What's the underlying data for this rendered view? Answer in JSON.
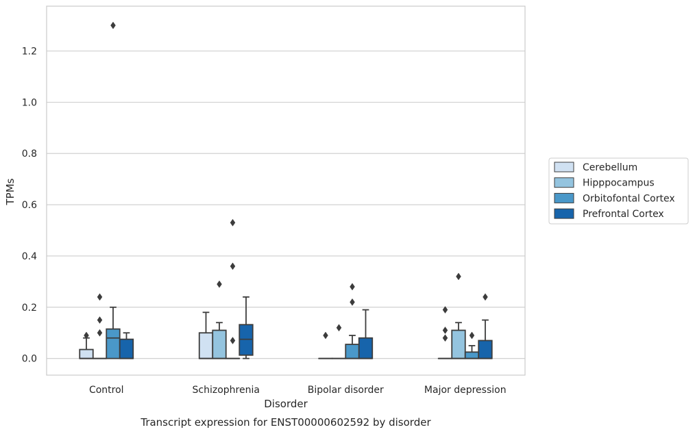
{
  "chart_data": {
    "type": "box",
    "caption": "Transcript expression for ENST00000602592 by disorder",
    "xlabel": "Disorder",
    "ylabel": "TPMs",
    "ylim": [
      -0.065,
      1.375
    ],
    "yticks": [
      0.0,
      0.2,
      0.4,
      0.6,
      0.8,
      1.0,
      1.2
    ],
    "ytick_labels": [
      "0.0",
      "0.2",
      "0.4",
      "0.6",
      "0.8",
      "1.0",
      "1.2"
    ],
    "grid": true,
    "legend_position": "right",
    "categories": [
      "Control",
      "Schizophrenia",
      "Bipolar disorder",
      "Major depression"
    ],
    "series": [
      {
        "name": "Cerebellum",
        "color": "#d0e1f2",
        "boxes": [
          {
            "q1": 0.0,
            "median": 0.0,
            "q3": 0.035,
            "whisker_low": 0.0,
            "whisker_high": 0.08,
            "outliers": [
              0.09
            ]
          },
          {
            "q1": 0.0,
            "median": 0.0,
            "q3": 0.1,
            "whisker_low": 0.0,
            "whisker_high": 0.18,
            "outliers": []
          },
          {
            "q1": 0.0,
            "median": 0.0,
            "q3": 0.0,
            "whisker_low": 0.0,
            "whisker_high": 0.0,
            "outliers": [
              0.09
            ]
          },
          {
            "q1": 0.0,
            "median": 0.0,
            "q3": 0.0,
            "whisker_low": 0.0,
            "whisker_high": 0.0,
            "outliers": [
              0.19,
              0.11,
              0.08
            ]
          }
        ]
      },
      {
        "name": "Hipppocampus",
        "color": "#94c4df",
        "boxes": [
          {
            "q1": 0.0,
            "median": 0.0,
            "q3": 0.0,
            "whisker_low": 0.0,
            "whisker_high": 0.0,
            "outliers": [
              0.24,
              0.15,
              0.1
            ]
          },
          {
            "q1": 0.0,
            "median": 0.0,
            "q3": 0.11,
            "whisker_low": 0.0,
            "whisker_high": 0.14,
            "outliers": [
              0.29
            ]
          },
          {
            "q1": 0.0,
            "median": 0.0,
            "q3": 0.0,
            "whisker_low": 0.0,
            "whisker_high": 0.0,
            "outliers": [
              0.12
            ]
          },
          {
            "q1": 0.0,
            "median": 0.0,
            "q3": 0.11,
            "whisker_low": 0.0,
            "whisker_high": 0.14,
            "outliers": [
              0.32
            ]
          }
        ]
      },
      {
        "name": "Orbitofontal Cortex",
        "color": "#4a98c9",
        "boxes": [
          {
            "q1": 0.0,
            "median": 0.08,
            "q3": 0.115,
            "whisker_low": 0.0,
            "whisker_high": 0.2,
            "outliers": [
              1.3
            ]
          },
          {
            "q1": 0.0,
            "median": 0.0,
            "q3": 0.0,
            "whisker_low": 0.0,
            "whisker_high": 0.0,
            "outliers": [
              0.53,
              0.36,
              0.07
            ]
          },
          {
            "q1": 0.0,
            "median": 0.0,
            "q3": 0.055,
            "whisker_low": 0.0,
            "whisker_high": 0.09,
            "outliers": [
              0.28,
              0.22
            ]
          },
          {
            "q1": 0.0,
            "median": 0.0,
            "q3": 0.025,
            "whisker_low": 0.0,
            "whisker_high": 0.05,
            "outliers": [
              0.09
            ]
          }
        ]
      },
      {
        "name": "Prefrontal Cortex",
        "color": "#1764ab",
        "boxes": [
          {
            "q1": 0.0,
            "median": 0.0,
            "q3": 0.075,
            "whisker_low": 0.0,
            "whisker_high": 0.1,
            "outliers": []
          },
          {
            "q1": 0.013,
            "median": 0.075,
            "q3": 0.132,
            "whisker_low": 0.0,
            "whisker_high": 0.24,
            "outliers": []
          },
          {
            "q1": 0.0,
            "median": 0.0,
            "q3": 0.08,
            "whisker_low": 0.0,
            "whisker_high": 0.19,
            "outliers": []
          },
          {
            "q1": 0.0,
            "median": 0.0,
            "q3": 0.07,
            "whisker_low": 0.0,
            "whisker_high": 0.15,
            "outliers": [
              0.24
            ]
          }
        ]
      }
    ]
  }
}
